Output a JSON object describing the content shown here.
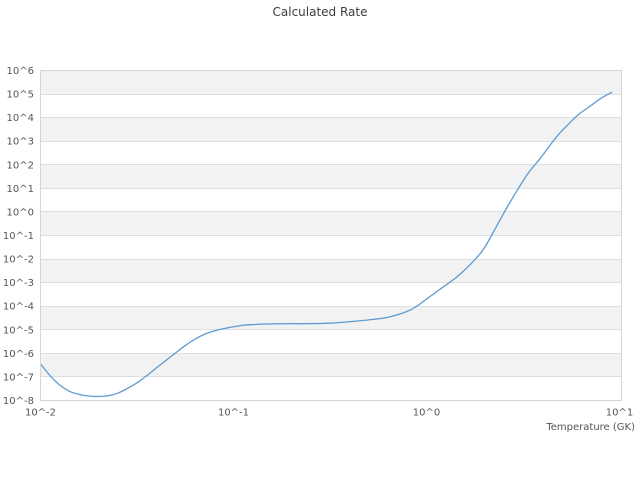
{
  "chart_data": {
    "type": "line",
    "title": "Calculated Rate",
    "xlabel": "Temperature (GK)",
    "ylabel": "",
    "x_scale": "log10",
    "y_scale": "log10",
    "xlim_log10": [
      -2,
      1
    ],
    "ylim_log10": [
      -8,
      6
    ],
    "x_tick_log10": [
      -2,
      -1,
      0,
      1
    ],
    "x_tick_labels": [
      "10^-2",
      "10^-1",
      "10^0",
      "10^1"
    ],
    "y_tick_log10": [
      6,
      5,
      4,
      3,
      2,
      1,
      0,
      -1,
      -2,
      -3,
      -4,
      -5,
      -6,
      -7,
      -8
    ],
    "y_tick_labels": [
      "10^6",
      "10^5",
      "10^4",
      "10^3",
      "10^2",
      "10^1",
      "10^0",
      "10^-1",
      "10^-2",
      "10^-3",
      "10^-4",
      "10^-5",
      "10^-6",
      "10^-7",
      "10^-8"
    ],
    "grid": "horizontal-decade-lines",
    "background": "alternating-horizontal-bands-starting-gray-at-top",
    "legend": "none",
    "colors": {
      "line": "#5c9bd3",
      "band": "#f2f2f2",
      "gridline": "#dedede",
      "frame": "#d6d6d6",
      "tick_text": "#555555",
      "title_text": "#3d3d3d"
    },
    "series": [
      {
        "name": "calculated-rate",
        "points_log10": [
          [
            -2.0,
            -6.45
          ],
          [
            -1.95,
            -6.95
          ],
          [
            -1.9,
            -7.35
          ],
          [
            -1.85,
            -7.61
          ],
          [
            -1.8,
            -7.74
          ],
          [
            -1.75,
            -7.81
          ],
          [
            -1.7,
            -7.83
          ],
          [
            -1.65,
            -7.8
          ],
          [
            -1.6,
            -7.69
          ],
          [
            -1.55,
            -7.49
          ],
          [
            -1.5,
            -7.25
          ],
          [
            -1.45,
            -6.95
          ],
          [
            -1.4,
            -6.62
          ],
          [
            -1.35,
            -6.3
          ],
          [
            -1.3,
            -5.98
          ],
          [
            -1.25,
            -5.67
          ],
          [
            -1.2,
            -5.4
          ],
          [
            -1.15,
            -5.19
          ],
          [
            -1.1,
            -5.05
          ],
          [
            -1.05,
            -4.95
          ],
          [
            -1.0,
            -4.87
          ],
          [
            -0.95,
            -4.81
          ],
          [
            -0.9,
            -4.78
          ],
          [
            -0.85,
            -4.76
          ],
          [
            -0.8,
            -4.75
          ],
          [
            -0.7,
            -4.74
          ],
          [
            -0.6,
            -4.74
          ],
          [
            -0.5,
            -4.72
          ],
          [
            -0.4,
            -4.66
          ],
          [
            -0.3,
            -4.58
          ],
          [
            -0.2,
            -4.47
          ],
          [
            -0.1,
            -4.22
          ],
          [
            -0.05,
            -4.0
          ],
          [
            0.0,
            -3.7
          ],
          [
            0.07,
            -3.28
          ],
          [
            0.17,
            -2.67
          ],
          [
            0.28,
            -1.75
          ],
          [
            0.33,
            -1.1
          ],
          [
            0.38,
            -0.35
          ],
          [
            0.43,
            0.37
          ],
          [
            0.48,
            1.05
          ],
          [
            0.53,
            1.68
          ],
          [
            0.59,
            2.28
          ],
          [
            0.64,
            2.83
          ],
          [
            0.69,
            3.34
          ],
          [
            0.74,
            3.76
          ],
          [
            0.79,
            4.15
          ],
          [
            0.85,
            4.5
          ],
          [
            0.9,
            4.8
          ],
          [
            0.96,
            5.08
          ]
        ]
      }
    ]
  }
}
